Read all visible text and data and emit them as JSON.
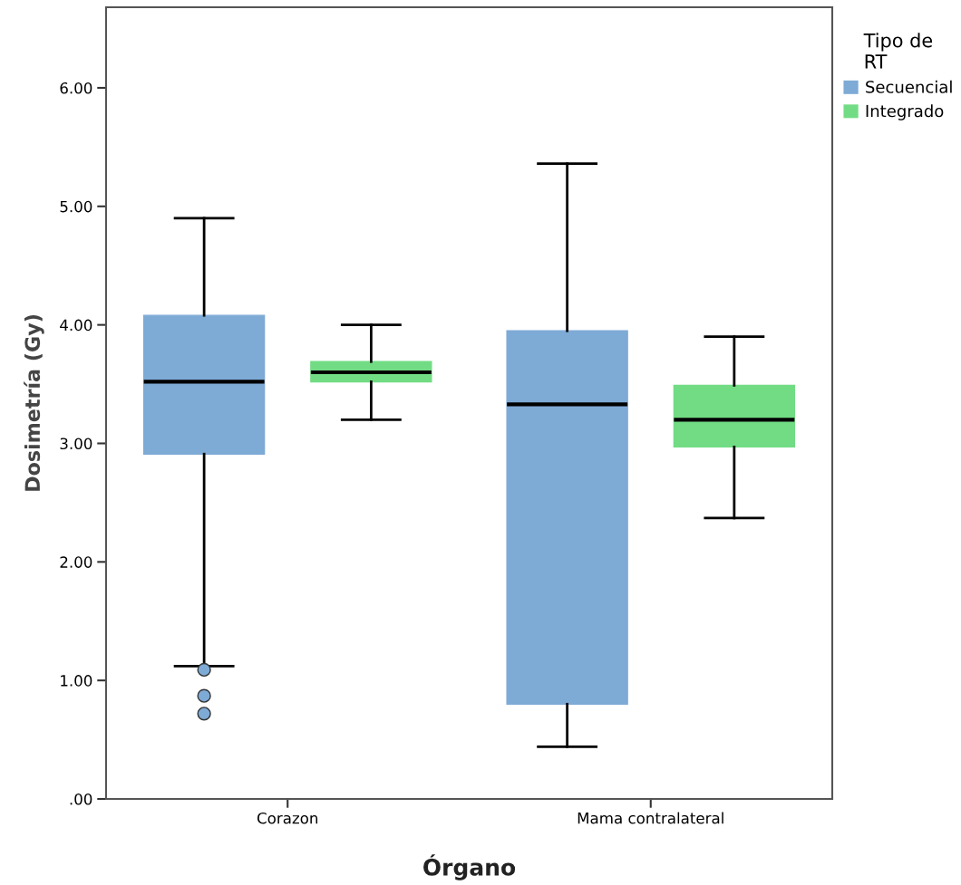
{
  "chart_data": {
    "type": "box",
    "xlabel": "Órgano",
    "ylabel": "Dosimetría (Gy)",
    "legend_title": "Tipo de\nRT",
    "legend": "top right",
    "categories": [
      "Corazon",
      "Mama contralateral"
    ],
    "ylim": [
      0,
      6.68
    ],
    "yticks": [
      {
        "value": 0,
        "label": ".00"
      },
      {
        "value": 1,
        "label": "1.00"
      },
      {
        "value": 2,
        "label": "2.00"
      },
      {
        "value": 3,
        "label": "3.00"
      },
      {
        "value": 4,
        "label": "4.00"
      },
      {
        "value": 5,
        "label": "5.00"
      },
      {
        "value": 6,
        "label": "6.00"
      }
    ],
    "grid": false,
    "series": [
      {
        "name": "Secuencial",
        "color": "#7eaad6",
        "boxes": [
          {
            "low": 1.12,
            "q1": 2.91,
            "median": 3.52,
            "q3": 4.08,
            "high": 4.9,
            "outliers": [
              1.09,
              0.87,
              0.72
            ]
          },
          {
            "low": 0.44,
            "q1": 0.8,
            "median": 3.33,
            "q3": 3.95,
            "high": 5.36
          }
        ]
      },
      {
        "name": "Integrado",
        "color": "#72dc84",
        "boxes": [
          {
            "low": 3.2,
            "q1": 3.52,
            "median": 3.6,
            "q3": 3.69,
            "high": 4.0
          },
          {
            "low": 2.37,
            "q1": 2.97,
            "median": 3.2,
            "q3": 3.49,
            "high": 3.9
          }
        ]
      }
    ]
  }
}
